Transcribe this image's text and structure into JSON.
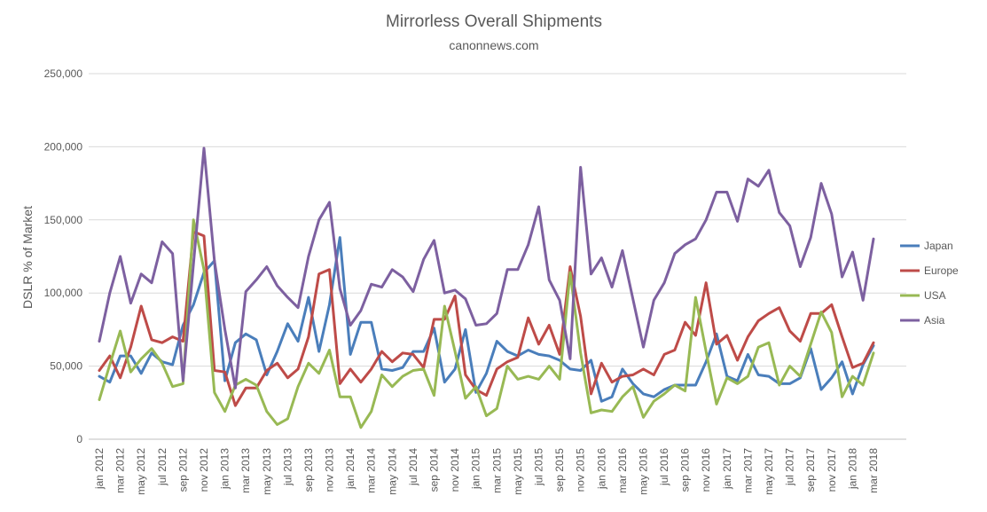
{
  "chart_data": {
    "type": "line",
    "title": "Mirrorless Overall Shipments",
    "subtitle": "canonnews.com",
    "xlabel": "",
    "ylabel": "DSLR % of Market",
    "ylim": [
      0,
      250000
    ],
    "y_ticks": [
      0,
      50000,
      100000,
      150000,
      200000,
      250000
    ],
    "y_tick_labels": [
      "0",
      "50,000",
      "100,000",
      "150,000",
      "200,000",
      "250,000"
    ],
    "x_range": [
      "jan 2012",
      "mar 2018"
    ],
    "x_tick_labels": [
      "jan 2012",
      "mar 2012",
      "may 2012",
      "jul 2012",
      "sep 2012",
      "nov 2012",
      "jan 2013",
      "mar 2013",
      "may 2013",
      "jul 2013",
      "sep 2013",
      "nov 2013",
      "jan 2014",
      "mar 2014",
      "may 2014",
      "jul 2014",
      "sep 2014",
      "nov 2014",
      "jan 2015",
      "mar 2015",
      "may 2015",
      "jul 2015",
      "sep 2015",
      "nov 2015",
      "jan 2016",
      "mar 2016",
      "may 2016",
      "jul 2016",
      "sep 2016",
      "nov 2016",
      "jan 2017",
      "mar 2017",
      "may 2017",
      "jul 2017",
      "sep 2017",
      "nov 2017",
      "jan 2018",
      "mar 2018"
    ],
    "grid": true,
    "legend_position": "right",
    "series": [
      {
        "name": "Japan",
        "color": "#4a7ebb",
        "values": [
          43000,
          39000,
          57000,
          57000,
          45000,
          59000,
          53000,
          51000,
          78000,
          92000,
          114000,
          122000,
          40000,
          66000,
          72000,
          68000,
          44000,
          60000,
          79000,
          67000,
          97000,
          60000,
          92000,
          138000,
          58000,
          80000,
          80000,
          48000,
          47000,
          49000,
          60000,
          60000,
          76000,
          39000,
          48000,
          75000,
          32000,
          45000,
          67000,
          60000,
          57000,
          61000,
          58000,
          57000,
          54000,
          48000,
          47000,
          54000,
          26000,
          29000,
          48000,
          38000,
          31000,
          29000,
          34000,
          37000,
          37000,
          37000,
          53000,
          72000,
          43000,
          40000,
          58000,
          44000,
          43000,
          38000,
          38000,
          42000,
          62000,
          34000,
          42000,
          53000,
          31000,
          51000,
          64000
        ]
      },
      {
        "name": "Europe",
        "color": "#be4b48",
        "values": [
          47000,
          57000,
          42000,
          63000,
          91000,
          68000,
          66000,
          70000,
          67000,
          142000,
          139000,
          47000,
          46000,
          23000,
          35000,
          35000,
          47000,
          52000,
          42000,
          48000,
          70000,
          113000,
          116000,
          38000,
          48000,
          39000,
          48000,
          60000,
          53000,
          59000,
          58000,
          49000,
          82000,
          82000,
          98000,
          44000,
          34000,
          30000,
          48000,
          53000,
          56000,
          83000,
          65000,
          78000,
          58000,
          118000,
          84000,
          31000,
          52000,
          39000,
          43000,
          44000,
          48000,
          44000,
          58000,
          61000,
          80000,
          71000,
          107000,
          65000,
          71000,
          54000,
          70000,
          81000,
          86000,
          90000,
          74000,
          67000,
          86000,
          86000,
          92000,
          70000,
          49000,
          52000,
          66000
        ]
      },
      {
        "name": "USA",
        "color": "#98b954",
        "values": [
          27000,
          51000,
          74000,
          46000,
          55000,
          62000,
          52000,
          36000,
          38000,
          150000,
          116000,
          32000,
          19000,
          37000,
          41000,
          37000,
          19000,
          10000,
          14000,
          36000,
          52000,
          45000,
          61000,
          29000,
          29000,
          8000,
          19000,
          44000,
          36000,
          43000,
          47000,
          48000,
          30000,
          91000,
          60000,
          28000,
          36000,
          16000,
          21000,
          50000,
          41000,
          43000,
          41000,
          50000,
          41000,
          114000,
          59000,
          18000,
          20000,
          19000,
          29000,
          36000,
          15000,
          26000,
          31000,
          37000,
          33000,
          97000,
          60000,
          24000,
          42000,
          38000,
          43000,
          63000,
          66000,
          37000,
          50000,
          43000,
          65000,
          87000,
          73000,
          29000,
          43000,
          37000,
          59000
        ]
      },
      {
        "name": "Asia",
        "color": "#7d60a0",
        "values": [
          67000,
          100000,
          125000,
          93000,
          113000,
          107000,
          135000,
          127000,
          40000,
          120000,
          199000,
          122000,
          75000,
          35000,
          101000,
          109000,
          118000,
          105000,
          97000,
          90000,
          125000,
          150000,
          162000,
          103000,
          78000,
          88000,
          106000,
          104000,
          116000,
          111000,
          101000,
          123000,
          136000,
          100000,
          102000,
          96000,
          78000,
          79000,
          86000,
          116000,
          116000,
          133000,
          159000,
          109000,
          95000,
          55000,
          186000,
          113000,
          124000,
          104000,
          129000,
          96000,
          63000,
          95000,
          107000,
          127000,
          133000,
          137000,
          150000,
          169000,
          169000,
          149000,
          178000,
          173000,
          184000,
          155000,
          146000,
          118000,
          138000,
          175000,
          154000,
          111000,
          128000,
          95000,
          137000
        ]
      }
    ]
  }
}
